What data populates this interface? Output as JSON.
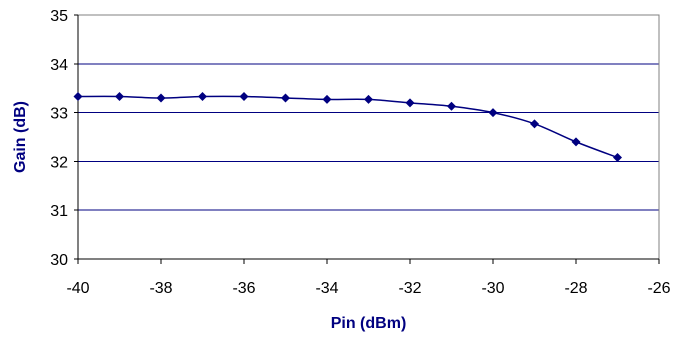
{
  "chart_data": {
    "type": "line",
    "title": "",
    "xlabel": "Pin (dBm)",
    "ylabel": "Gain (dB)",
    "xlim": [
      -40,
      -26
    ],
    "ylim": [
      30,
      35
    ],
    "x_ticks": [
      "-40",
      "-38",
      "-36",
      "-34",
      "-32",
      "-30",
      "-28",
      "-26"
    ],
    "y_ticks": [
      "30",
      "31",
      "32",
      "33",
      "34",
      "35"
    ],
    "grid": "horizontal",
    "legend": "none",
    "series": [
      {
        "x": [
          -40,
          -39,
          -38,
          -37,
          -36,
          -35,
          -34,
          -33,
          -32,
          -31,
          -30,
          -29,
          -28,
          -27
        ],
        "y": [
          33.33,
          33.33,
          33.3,
          33.33,
          33.33,
          33.3,
          33.27,
          33.27,
          33.2,
          33.13,
          33.0,
          32.77,
          32.4,
          32.08
        ],
        "color": "#000080",
        "marker": "diamond",
        "smooth": true
      }
    ]
  }
}
